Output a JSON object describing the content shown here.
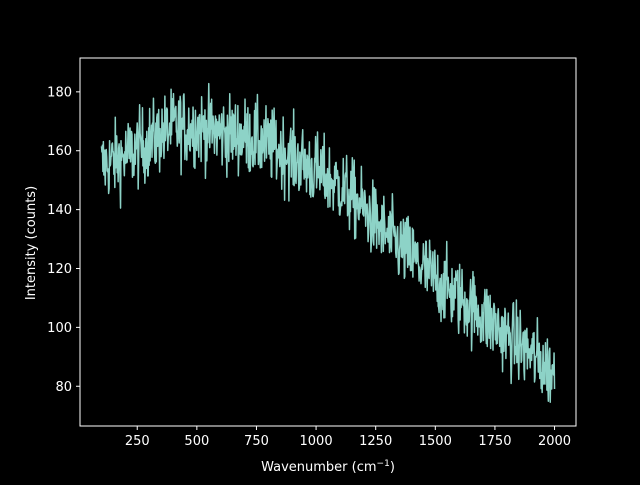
{
  "chart_data": {
    "type": "line",
    "title": "",
    "xlabel": "Wavenumber (cm",
    "xlabel_sup": "−1",
    "xlabel_close": ")",
    "ylabel": "Intensity (counts)",
    "xlim": [
      10,
      2090
    ],
    "ylim": [
      66.5,
      191.5
    ],
    "xticks": [
      250,
      500,
      750,
      1000,
      1250,
      1500,
      1750,
      2000
    ],
    "xtick_labels": [
      "250",
      "500",
      "750",
      "1000",
      "1250",
      "1500",
      "1750",
      "2000"
    ],
    "yticks": [
      80,
      100,
      120,
      140,
      160,
      180
    ],
    "ytick_labels": [
      "80",
      "100",
      "120",
      "140",
      "160",
      "180"
    ],
    "grid": false,
    "legend": "none",
    "colors": {
      "background": "#000000",
      "axes": "#ffffff",
      "series": "#8dd3c7"
    },
    "series": [
      {
        "x_start": 100,
        "x_end": 2000,
        "x_step": 2,
        "trend": [
          [
            100,
            155
          ],
          [
            200,
            158
          ],
          [
            300,
            163
          ],
          [
            400,
            168
          ],
          [
            500,
            168
          ],
          [
            600,
            166
          ],
          [
            700,
            165
          ],
          [
            800,
            162
          ],
          [
            900,
            158
          ],
          [
            1000,
            153
          ],
          [
            1100,
            148
          ],
          [
            1200,
            140
          ],
          [
            1300,
            131
          ],
          [
            1400,
            124
          ],
          [
            1500,
            116
          ],
          [
            1600,
            110
          ],
          [
            1700,
            104
          ],
          [
            1800,
            97
          ],
          [
            1900,
            91
          ],
          [
            2000,
            84
          ]
        ],
        "noise_amplitude": 6.5
      }
    ]
  }
}
